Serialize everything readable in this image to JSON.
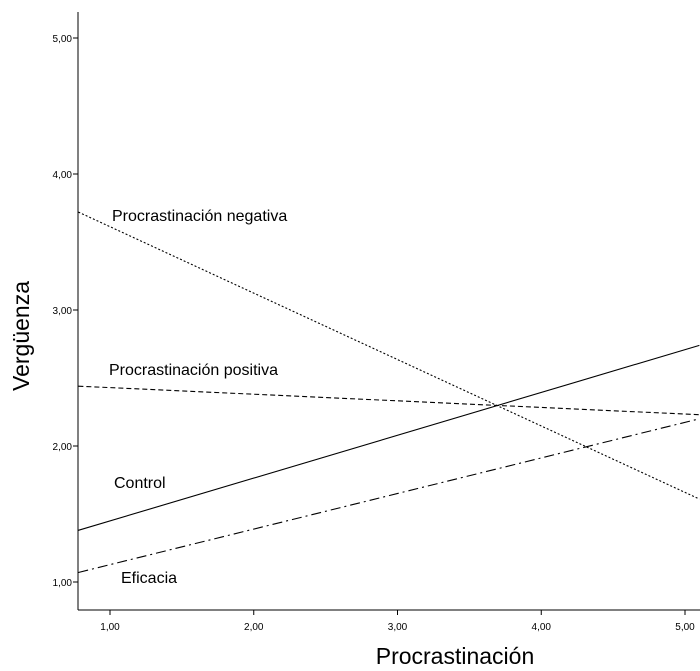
{
  "chart_data": {
    "type": "line",
    "title": "",
    "xlabel": "Procrastinación",
    "ylabel": "Vergüenza",
    "xlim": [
      0.78,
      5.1
    ],
    "ylim": [
      0.83,
      5.2
    ],
    "xticks": [
      {
        "value": 1,
        "label": "1,00"
      },
      {
        "value": 2,
        "label": "2,00"
      },
      {
        "value": 3,
        "label": "3,00"
      },
      {
        "value": 4,
        "label": "4,00"
      },
      {
        "value": 5,
        "label": "5,00"
      }
    ],
    "yticks": [
      {
        "value": 1,
        "label": "1,00"
      },
      {
        "value": 2,
        "label": "2,00"
      },
      {
        "value": 3,
        "label": "3,00"
      },
      {
        "value": 4,
        "label": "4,00"
      },
      {
        "value": 5,
        "label": "5,00"
      }
    ],
    "grid": false,
    "legend": "none",
    "series": [
      {
        "name": "Procrastinación negativa",
        "label_text": "Procrastinación negativa",
        "dash": "dotted",
        "x": [
          0.78,
          5.1
        ],
        "y": [
          3.72,
          1.61
        ]
      },
      {
        "name": "Procrastinación positiva",
        "label_text": "Procrastinación positiva",
        "dash": "dashed",
        "x": [
          0.78,
          5.1
        ],
        "y": [
          2.44,
          2.23
        ]
      },
      {
        "name": "Control",
        "label_text": "Control",
        "dash": "solid",
        "x": [
          0.78,
          5.1
        ],
        "y": [
          1.38,
          2.74
        ]
      },
      {
        "name": "Eficacia",
        "label_text": "Eficacia",
        "dash": "dashdot",
        "x": [
          0.78,
          5.1
        ],
        "y": [
          1.07,
          2.2
        ]
      }
    ],
    "line_color": "#000000"
  }
}
